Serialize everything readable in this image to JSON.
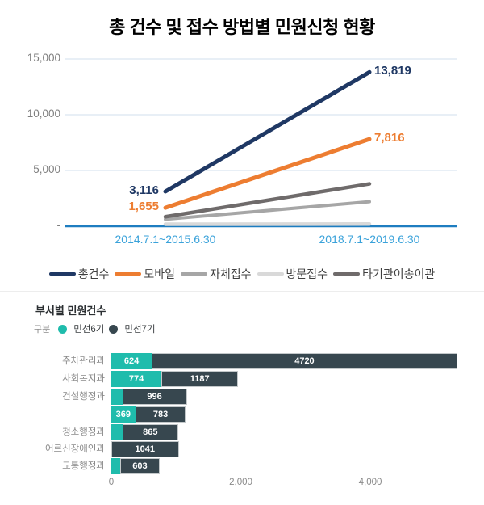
{
  "chart_data": [
    {
      "type": "line",
      "title": "총 건수 및 접수 방법별 민원신청 현황",
      "x": [
        "2014.7.1~2015.6.30",
        "2018.7.1~2019.6.30"
      ],
      "ylim": [
        0,
        15000
      ],
      "grid": "horizontal",
      "legend_position": "bottom",
      "axis_color": "#1e7dc0",
      "gridline_color": "#d9e5f1",
      "x_label_color": "#3aa2da",
      "y_ticks": [
        {
          "value": 15000,
          "label": "15,000"
        },
        {
          "value": 10000,
          "label": "10,000"
        },
        {
          "value": 5000,
          "label": "5,000"
        },
        {
          "value": 0,
          "label": "-"
        }
      ],
      "series": [
        {
          "name": "총건수",
          "color": "#1f3864",
          "values": [
            3116,
            13819
          ],
          "point_labels": [
            "3,116",
            "13,819"
          ],
          "estimated": false
        },
        {
          "name": "모바일",
          "color": "#ed7d31",
          "values": [
            1655,
            7816
          ],
          "point_labels": [
            "1,655",
            "7,816"
          ],
          "estimated": false
        },
        {
          "name": "자체접수",
          "color": "#a6a6a6",
          "values": [
            620,
            2200
          ],
          "point_labels": [
            "",
            ""
          ],
          "estimated": true
        },
        {
          "name": "방문접수",
          "color": "#d9d9d9",
          "values": [
            180,
            200
          ],
          "point_labels": [
            "",
            ""
          ],
          "estimated": true
        },
        {
          "name": "타기관이송이관",
          "color": "#6f6b6b",
          "values": [
            850,
            3800
          ],
          "point_labels": [
            "",
            ""
          ],
          "estimated": true
        }
      ]
    },
    {
      "type": "bar",
      "orientation": "horizontal",
      "stacked": true,
      "title": "부서별 민원건수",
      "legend_title": "구분",
      "series_names": [
        "민선6기",
        "민선7기"
      ],
      "series_colors": [
        "#1fbcac",
        "#37474f"
      ],
      "categories": [
        "주차관리과",
        "사회복지과",
        "건설행정과",
        "",
        "청소행정과",
        "어르신장애인과",
        "교통행정과"
      ],
      "series": [
        {
          "name": "민선6기",
          "values": [
            624,
            774,
            170,
            369,
            170,
            0,
            140
          ]
        },
        {
          "name": "민선7기",
          "values": [
            4720,
            1187,
            996,
            783,
            865,
            1041,
            603
          ]
        }
      ],
      "bar_labels": [
        [
          "624",
          "4720"
        ],
        [
          "774",
          "1187"
        ],
        [
          "",
          "996"
        ],
        [
          "369",
          "783"
        ],
        [
          "",
          "865"
        ],
        [
          "",
          "1041"
        ],
        [
          "",
          "603"
        ]
      ],
      "unlabeled_segments_estimated": true,
      "xlim": [
        0,
        4800
      ],
      "x_ticks": [
        {
          "value": 0,
          "label": "0"
        },
        {
          "value": 2000,
          "label": "2,000"
        },
        {
          "value": 4000,
          "label": "4,000"
        }
      ]
    }
  ]
}
